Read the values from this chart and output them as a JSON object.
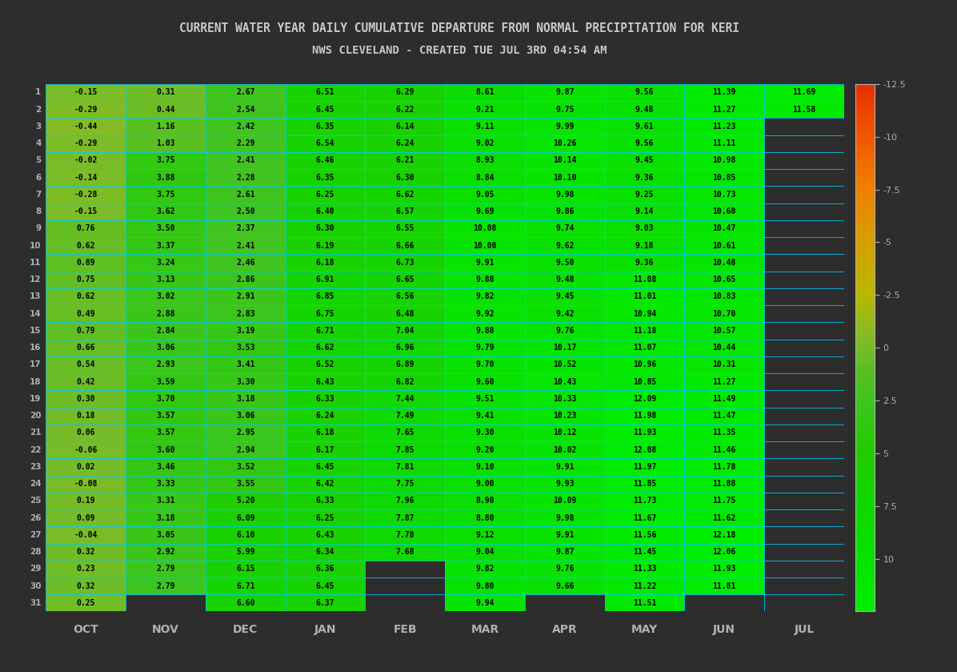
{
  "title1": "CURRENT WATER YEAR DAILY CUMULATIVE DEPARTURE FROM NORMAL PRECIPITATION FOR KERI",
  "title2": "NWS CLEVELAND - CREATED TUE JUL 3RD 04:54 AM",
  "months": [
    "OCT",
    "NOV",
    "DEC",
    "JAN",
    "FEB",
    "MAR",
    "APR",
    "MAY",
    "JUN",
    "JUL"
  ],
  "colorbar_ticks": [
    -12.5,
    -10,
    -7.5,
    -5,
    -2.5,
    0,
    2.5,
    5,
    7.5,
    10
  ],
  "vmin": -12.5,
  "vmax": 12.5,
  "background_color": "#2d2d2d",
  "grid_color": "#00ccff",
  "text_color": "#b0b0b0",
  "title_color": "#c8c8c8",
  "cell_text_color": "#000000",
  "cmap_colors": [
    [
      0.0,
      "#e63000"
    ],
    [
      0.05,
      "#ee4400"
    ],
    [
      0.12,
      "#f06000"
    ],
    [
      0.2,
      "#f08000"
    ],
    [
      0.3,
      "#d4a000"
    ],
    [
      0.4,
      "#b8b800"
    ],
    [
      0.46,
      "#90bb20"
    ],
    [
      0.5,
      "#78bc28"
    ],
    [
      0.55,
      "#55c020"
    ],
    [
      0.6,
      "#40c420"
    ],
    [
      0.7,
      "#22cc00"
    ],
    [
      0.8,
      "#10d800"
    ],
    [
      1.0,
      "#00ee00"
    ]
  ],
  "table_data": [
    [
      -0.15,
      0.31,
      2.67,
      6.51,
      6.29,
      8.61,
      9.87,
      9.56,
      11.39,
      11.69
    ],
    [
      -0.29,
      0.44,
      2.54,
      6.45,
      6.22,
      9.21,
      9.75,
      9.48,
      11.27,
      11.58
    ],
    [
      -0.44,
      1.16,
      2.42,
      6.35,
      6.14,
      9.11,
      9.99,
      9.61,
      11.23,
      null
    ],
    [
      -0.29,
      1.03,
      2.29,
      6.54,
      6.24,
      9.02,
      10.26,
      9.56,
      11.11,
      null
    ],
    [
      -0.02,
      3.75,
      2.41,
      6.46,
      6.21,
      8.93,
      10.14,
      9.45,
      10.98,
      null
    ],
    [
      -0.14,
      3.88,
      2.28,
      6.35,
      6.3,
      8.84,
      10.1,
      9.36,
      10.85,
      null
    ],
    [
      -0.28,
      3.75,
      2.61,
      6.25,
      6.62,
      9.05,
      9.98,
      9.25,
      10.73,
      null
    ],
    [
      -0.15,
      3.62,
      2.5,
      6.4,
      6.57,
      9.69,
      9.86,
      9.14,
      10.6,
      null
    ],
    [
      0.76,
      3.5,
      2.37,
      6.3,
      6.55,
      10.08,
      9.74,
      9.03,
      10.47,
      null
    ],
    [
      0.62,
      3.37,
      2.41,
      6.19,
      6.66,
      10.0,
      9.62,
      9.18,
      10.61,
      null
    ],
    [
      0.89,
      3.24,
      2.46,
      6.18,
      6.73,
      9.91,
      9.5,
      9.36,
      10.48,
      null
    ],
    [
      0.75,
      3.13,
      2.86,
      6.91,
      6.65,
      9.88,
      9.48,
      11.08,
      10.65,
      null
    ],
    [
      0.62,
      3.02,
      2.91,
      6.85,
      6.56,
      9.82,
      9.45,
      11.01,
      10.83,
      null
    ],
    [
      0.49,
      2.88,
      2.83,
      6.75,
      6.48,
      9.92,
      9.42,
      10.94,
      10.7,
      null
    ],
    [
      0.79,
      2.84,
      3.19,
      6.71,
      7.04,
      9.88,
      9.76,
      11.18,
      10.57,
      null
    ],
    [
      0.66,
      3.06,
      3.53,
      6.62,
      6.96,
      9.79,
      10.17,
      11.07,
      10.44,
      null
    ],
    [
      0.54,
      2.93,
      3.41,
      6.52,
      6.89,
      9.7,
      10.52,
      10.96,
      10.31,
      null
    ],
    [
      0.42,
      3.59,
      3.3,
      6.43,
      6.82,
      9.6,
      10.43,
      10.85,
      11.27,
      null
    ],
    [
      0.3,
      3.7,
      3.18,
      6.33,
      7.44,
      9.51,
      10.33,
      12.09,
      11.49,
      null
    ],
    [
      0.18,
      3.57,
      3.06,
      6.24,
      7.49,
      9.41,
      10.23,
      11.98,
      11.47,
      null
    ],
    [
      0.06,
      3.57,
      2.95,
      6.18,
      7.65,
      9.3,
      10.12,
      11.93,
      11.35,
      null
    ],
    [
      -0.06,
      3.6,
      2.94,
      6.17,
      7.85,
      9.2,
      10.02,
      12.08,
      11.46,
      null
    ],
    [
      0.02,
      3.46,
      3.52,
      6.45,
      7.81,
      9.1,
      9.91,
      11.97,
      11.78,
      null
    ],
    [
      -0.08,
      3.33,
      3.55,
      6.42,
      7.75,
      9.0,
      9.93,
      11.85,
      11.88,
      null
    ],
    [
      0.19,
      3.31,
      5.2,
      6.33,
      7.96,
      8.9,
      10.09,
      11.73,
      11.75,
      null
    ],
    [
      0.09,
      3.18,
      6.09,
      6.25,
      7.87,
      8.8,
      9.98,
      11.67,
      11.62,
      null
    ],
    [
      -0.04,
      3.05,
      6.1,
      6.43,
      7.78,
      9.12,
      9.91,
      11.56,
      12.18,
      null
    ],
    [
      0.32,
      2.92,
      5.99,
      6.34,
      7.68,
      9.04,
      9.87,
      11.45,
      12.06,
      null
    ],
    [
      0.23,
      2.79,
      6.15,
      6.36,
      null,
      9.82,
      9.76,
      11.33,
      11.93,
      null
    ],
    [
      0.32,
      2.79,
      6.71,
      6.45,
      null,
      9.8,
      9.66,
      11.22,
      11.81,
      null
    ],
    [
      0.25,
      null,
      6.6,
      6.37,
      null,
      9.94,
      null,
      11.51,
      null,
      null
    ]
  ]
}
